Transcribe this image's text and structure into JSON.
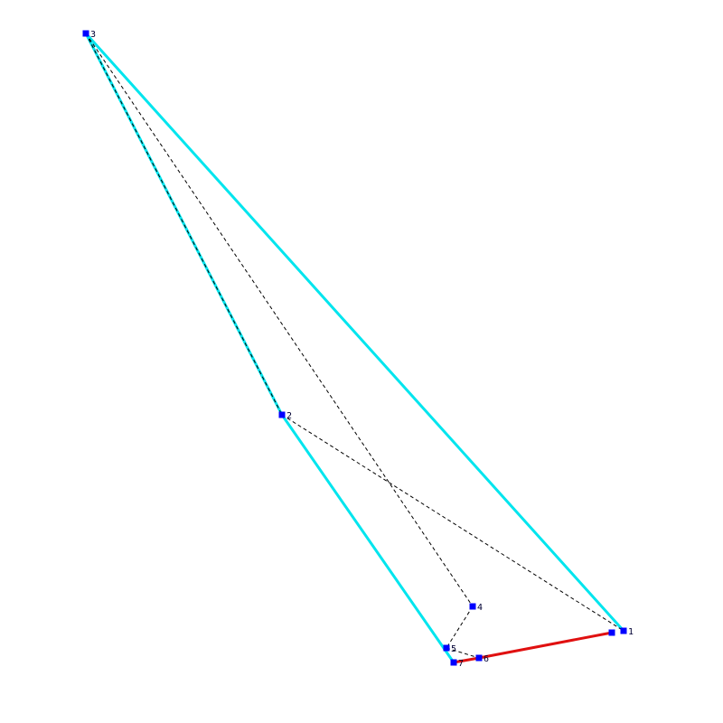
{
  "diagram": {
    "colors": {
      "hull": "#00e5ee",
      "highlight": "#e01010",
      "dashed": "#000000",
      "node": "#0000ff",
      "label": "#000033",
      "background": "#ffffff"
    },
    "nodes": [
      {
        "id": "n1",
        "label": "1"
      },
      {
        "id": "n1b",
        "label": ""
      },
      {
        "id": "n2",
        "label": "2"
      },
      {
        "id": "n3",
        "label": "3"
      },
      {
        "id": "n4",
        "label": "4"
      },
      {
        "id": "n5",
        "label": "5"
      },
      {
        "id": "n6",
        "label": "6"
      },
      {
        "id": "n7",
        "label": "7"
      }
    ],
    "hull_edges": [
      [
        "n1",
        "n3"
      ],
      [
        "n3",
        "n2"
      ],
      [
        "n2",
        "n7"
      ]
    ],
    "dashed_edges": [
      [
        "n3",
        "n4"
      ],
      [
        "n4",
        "n5"
      ],
      [
        "n5",
        "n6"
      ],
      [
        "n2",
        "n1"
      ],
      [
        "n3",
        "n2"
      ]
    ],
    "highlight_edges": [
      [
        "n7",
        "n6"
      ],
      [
        "n6",
        "n1b"
      ]
    ]
  }
}
